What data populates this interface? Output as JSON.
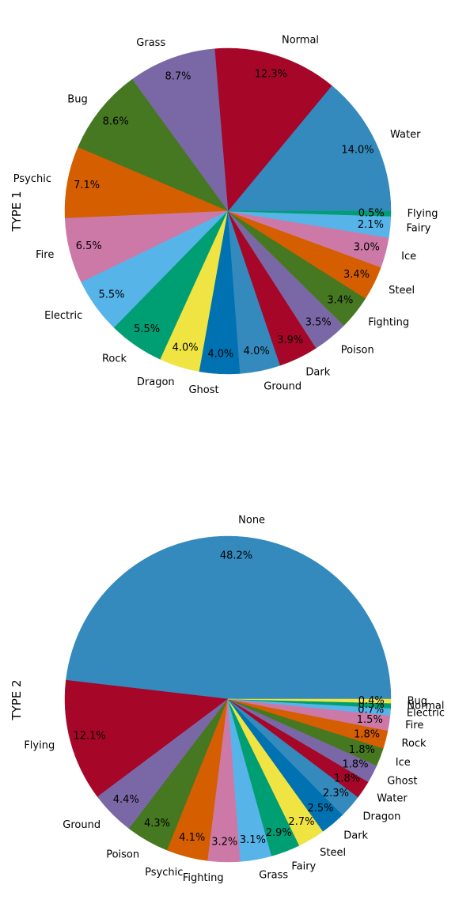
{
  "chart_data": [
    {
      "type": "pie",
      "ylabel": "TYPE 1",
      "start_angle_deg": 0,
      "direction": "counterclockwise",
      "categories": [
        "Water",
        "Normal",
        "Grass",
        "Bug",
        "Psychic",
        "Fire",
        "Electric",
        "Rock",
        "Dragon",
        "Ghost",
        "Ground",
        "Dark",
        "Poison",
        "Fighting",
        "Steel",
        "Ice",
        "Fairy",
        "Flying"
      ],
      "values": [
        14.0,
        12.3,
        8.7,
        8.6,
        7.1,
        6.5,
        5.5,
        5.5,
        4.0,
        4.0,
        4.0,
        3.9,
        3.5,
        3.4,
        3.4,
        3.0,
        2.1,
        0.5
      ],
      "value_labels": [
        "14.0%",
        "12.3%",
        "8.7%",
        "8.6%",
        "7.1%",
        "6.5%",
        "5.5%",
        "5.5%",
        "4.0%",
        "4.0%",
        "4.0%",
        "3.9%",
        "3.5%",
        "3.4%",
        "3.4%",
        "3.0%",
        "2.1%",
        "0.5%"
      ],
      "colors": [
        "#348ABD",
        "#A60628",
        "#7A68A6",
        "#467821",
        "#D55E00",
        "#CC79A7",
        "#56B4E9",
        "#009E73",
        "#F0E442",
        "#0072B2",
        "#348ABD",
        "#A60628",
        "#7A68A6",
        "#467821",
        "#D55E00",
        "#CC79A7",
        "#56B4E9",
        "#009E73"
      ]
    },
    {
      "type": "pie",
      "ylabel": "TYPE 2",
      "start_angle_deg": 0,
      "direction": "counterclockwise",
      "categories": [
        "None",
        "Flying",
        "Ground",
        "Poison",
        "Psychic",
        "Fighting",
        "Grass",
        "Fairy",
        "Steel",
        "Dark",
        "Dragon",
        "Water",
        "Ghost",
        "Ice",
        "Rock",
        "Fire",
        "Electric",
        "Normal",
        "Bug"
      ],
      "values": [
        48.2,
        12.1,
        4.4,
        4.3,
        4.1,
        3.2,
        3.1,
        2.9,
        2.7,
        2.5,
        2.3,
        1.8,
        1.8,
        1.8,
        1.8,
        1.5,
        0.7,
        0.5,
        0.4
      ],
      "value_labels": [
        "48.2%",
        "12.1%",
        "4.4%",
        "4.3%",
        "4.1%",
        "3.2%",
        "3.1%",
        "2.9%",
        "2.7%",
        "2.5%",
        "2.3%",
        "1.8%",
        "1.8%",
        "1.8%",
        "1.8%",
        "1.5%",
        "0.7%",
        "0.5%",
        "0.4%"
      ],
      "colors": [
        "#348ABD",
        "#A60628",
        "#7A68A6",
        "#467821",
        "#D55E00",
        "#CC79A7",
        "#56B4E9",
        "#009E73",
        "#F0E442",
        "#0072B2",
        "#348ABD",
        "#A60628",
        "#7A68A6",
        "#467821",
        "#D55E00",
        "#CC79A7",
        "#56B4E9",
        "#009E73",
        "#F0E442"
      ]
    }
  ]
}
